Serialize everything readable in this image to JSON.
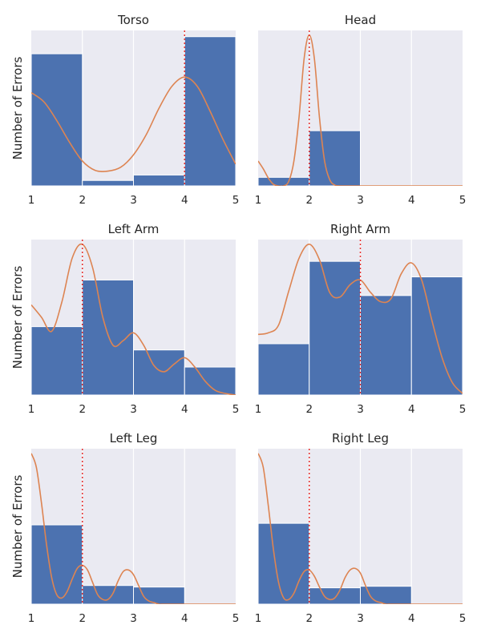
{
  "chart_data": [
    {
      "type": "histogram",
      "title": "Torso",
      "ylabel": "Number of Errors",
      "xlim": [
        1,
        5
      ],
      "xticks": [
        "1",
        "2",
        "3",
        "4",
        "5"
      ],
      "bins": [
        [
          1,
          2
        ],
        [
          2,
          3
        ],
        [
          3,
          4
        ],
        [
          4,
          5
        ]
      ],
      "values": [
        0.85,
        0.035,
        0.07,
        0.96
      ],
      "ymax": 1.0,
      "median_line": 4,
      "kde": {
        "x": [
          1.0,
          1.25,
          1.5,
          1.75,
          2.0,
          2.25,
          2.5,
          2.75,
          3.0,
          3.25,
          3.5,
          3.75,
          4.0,
          4.25,
          4.5,
          4.75,
          5.0
        ],
        "y": [
          0.6,
          0.54,
          0.42,
          0.28,
          0.16,
          0.1,
          0.095,
          0.12,
          0.2,
          0.33,
          0.5,
          0.64,
          0.7,
          0.64,
          0.48,
          0.3,
          0.14
        ]
      }
    },
    {
      "type": "histogram",
      "title": "Head",
      "ylabel": "",
      "xlim": [
        1,
        5
      ],
      "xticks": [
        "1",
        "2",
        "3",
        "4",
        "5"
      ],
      "bins": [
        [
          1,
          2
        ],
        [
          2,
          3
        ]
      ],
      "values": [
        0.055,
        0.355
      ],
      "ymax": 1.0,
      "median_line": 2,
      "kde": {
        "x": [
          1.0,
          1.1,
          1.2,
          1.3,
          1.4,
          1.5,
          1.6,
          1.7,
          1.8,
          1.9,
          2.0,
          2.1,
          2.2,
          2.3,
          2.4,
          2.5,
          2.6,
          2.7,
          2.8,
          3.0,
          4.0,
          5.0
        ],
        "y": [
          0.16,
          0.11,
          0.05,
          0.01,
          0.0,
          0.0,
          0.03,
          0.16,
          0.44,
          0.82,
          0.97,
          0.82,
          0.44,
          0.16,
          0.04,
          0.005,
          0.0,
          0.0,
          0.0,
          0.0,
          0.0,
          0.0
        ]
      }
    },
    {
      "type": "histogram",
      "title": "Left Arm",
      "ylabel": "Number of Errors",
      "xlim": [
        1,
        5
      ],
      "xticks": [
        "1",
        "2",
        "3",
        "4",
        "5"
      ],
      "bins": [
        [
          1,
          2
        ],
        [
          2,
          3
        ],
        [
          3,
          4
        ],
        [
          4,
          5
        ]
      ],
      "values": [
        0.44,
        0.74,
        0.29,
        0.18
      ],
      "ymax": 1.0,
      "median_line": 2,
      "kde": {
        "x": [
          1.0,
          1.2,
          1.4,
          1.6,
          1.8,
          2.0,
          2.2,
          2.4,
          2.6,
          2.8,
          3.0,
          3.2,
          3.4,
          3.6,
          3.8,
          4.0,
          4.2,
          4.4,
          4.6,
          4.8,
          5.0
        ],
        "y": [
          0.58,
          0.5,
          0.41,
          0.6,
          0.88,
          0.97,
          0.82,
          0.5,
          0.32,
          0.35,
          0.4,
          0.32,
          0.19,
          0.15,
          0.2,
          0.24,
          0.18,
          0.09,
          0.03,
          0.01,
          0.0
        ]
      }
    },
    {
      "type": "histogram",
      "title": "Right Arm",
      "ylabel": "",
      "xlim": [
        1,
        5
      ],
      "xticks": [
        "1",
        "2",
        "3",
        "4",
        "5"
      ],
      "bins": [
        [
          1,
          2
        ],
        [
          2,
          3
        ],
        [
          3,
          4
        ],
        [
          4,
          5
        ]
      ],
      "values": [
        0.33,
        0.86,
        0.64,
        0.76
      ],
      "ymax": 1.0,
      "median_line": 3,
      "kde": {
        "x": [
          1.0,
          1.2,
          1.4,
          1.6,
          1.8,
          2.0,
          2.2,
          2.4,
          2.6,
          2.8,
          3.0,
          3.2,
          3.4,
          3.6,
          3.8,
          4.0,
          4.2,
          4.4,
          4.6,
          4.8,
          5.0
        ],
        "y": [
          0.39,
          0.4,
          0.45,
          0.67,
          0.88,
          0.97,
          0.87,
          0.66,
          0.63,
          0.71,
          0.74,
          0.66,
          0.6,
          0.62,
          0.78,
          0.85,
          0.74,
          0.48,
          0.24,
          0.08,
          0.01
        ]
      }
    },
    {
      "type": "histogram",
      "title": "Left Leg",
      "ylabel": "Number of Errors",
      "xlim": [
        1,
        5
      ],
      "xticks": [
        "1",
        "2",
        "3",
        "4",
        "5"
      ],
      "bins": [
        [
          1,
          2
        ],
        [
          2,
          3
        ],
        [
          3,
          4
        ]
      ],
      "values": [
        0.51,
        0.12,
        0.11
      ],
      "ymax": 1.0,
      "median_line": 2,
      "kde": {
        "x": [
          1.0,
          1.1,
          1.2,
          1.3,
          1.4,
          1.5,
          1.6,
          1.7,
          1.8,
          1.9,
          2.0,
          2.1,
          2.2,
          2.3,
          2.4,
          2.5,
          2.6,
          2.7,
          2.8,
          2.9,
          3.0,
          3.1,
          3.2,
          3.3,
          3.4,
          3.5,
          3.6,
          3.8,
          4.0,
          4.5,
          5.0
        ],
        "y": [
          0.97,
          0.88,
          0.65,
          0.38,
          0.17,
          0.06,
          0.04,
          0.08,
          0.16,
          0.23,
          0.25,
          0.22,
          0.14,
          0.06,
          0.03,
          0.03,
          0.07,
          0.15,
          0.21,
          0.22,
          0.19,
          0.12,
          0.05,
          0.02,
          0.01,
          0.0,
          0.0,
          0.0,
          0.0,
          0.0,
          0.0
        ]
      }
    },
    {
      "type": "histogram",
      "title": "Right Leg",
      "ylabel": "",
      "xlim": [
        1,
        5
      ],
      "xticks": [
        "1",
        "2",
        "3",
        "4",
        "5"
      ],
      "bins": [
        [
          1,
          2
        ],
        [
          2,
          3
        ],
        [
          3,
          4
        ]
      ],
      "values": [
        0.52,
        0.105,
        0.115
      ],
      "ymax": 1.0,
      "median_line": 2,
      "kde": {
        "x": [
          1.0,
          1.1,
          1.2,
          1.3,
          1.4,
          1.5,
          1.6,
          1.7,
          1.8,
          1.9,
          2.0,
          2.1,
          2.2,
          2.3,
          2.4,
          2.5,
          2.6,
          2.7,
          2.8,
          2.9,
          3.0,
          3.1,
          3.2,
          3.3,
          3.4,
          3.5,
          3.6,
          3.8,
          4.0,
          4.5,
          5.0
        ],
        "y": [
          0.97,
          0.88,
          0.63,
          0.35,
          0.14,
          0.04,
          0.03,
          0.07,
          0.15,
          0.21,
          0.22,
          0.18,
          0.11,
          0.05,
          0.03,
          0.04,
          0.09,
          0.17,
          0.22,
          0.23,
          0.2,
          0.12,
          0.05,
          0.02,
          0.01,
          0.0,
          0.0,
          0.0,
          0.0,
          0.0,
          0.0
        ]
      }
    }
  ],
  "colors": {
    "plot_background": "#eaeaf2",
    "bar": "#4c72b0",
    "kde": "#dd8452",
    "median_line": "#e8312f",
    "grid": "#ffffff"
  }
}
